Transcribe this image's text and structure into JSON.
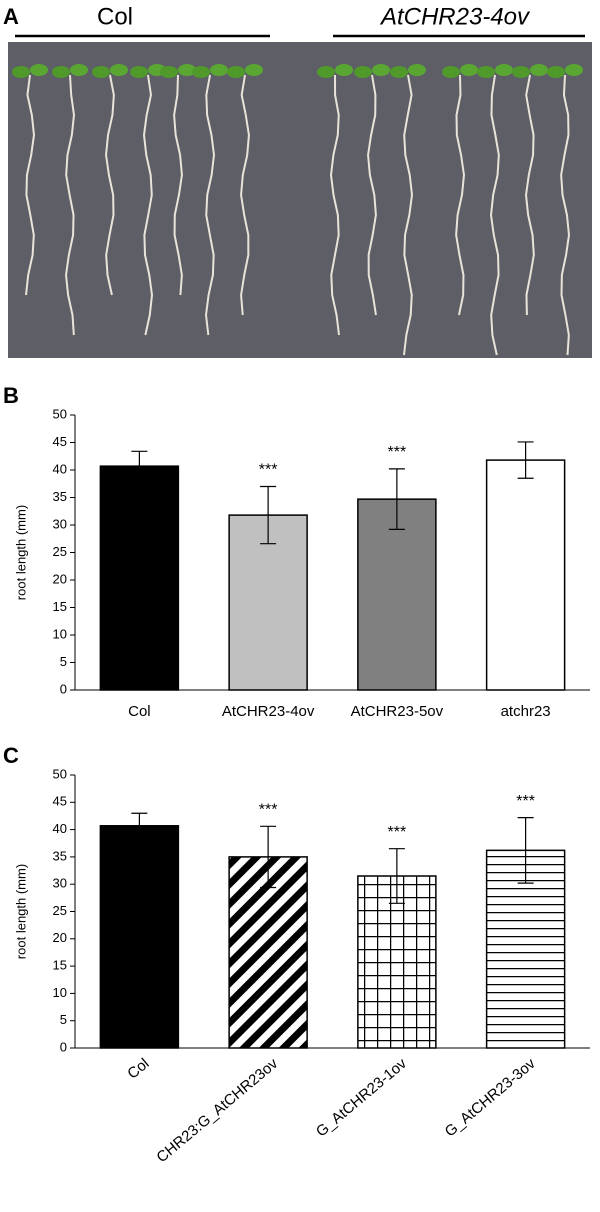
{
  "panel_a": {
    "panel_label": "A",
    "groups": [
      "Col",
      "AtCHR23-4ov"
    ]
  },
  "chart_data": [
    {
      "type": "bar",
      "panel_label": "B",
      "ylabel": "root length (mm)",
      "categories": [
        "Col",
        "AtCHR23-4ov",
        "AtCHR23-5ov",
        "atchr23"
      ],
      "values": [
        40.7,
        31.8,
        34.7,
        41.8
      ],
      "errors": [
        2.7,
        5.2,
        5.5,
        3.3
      ],
      "colors": [
        "#000000",
        "#c0c0c0",
        "#808080",
        "#ffffff"
      ],
      "annotations": [
        null,
        "***",
        "***",
        null
      ],
      "ylim": [
        0,
        50
      ],
      "yticks": [
        0,
        5,
        10,
        15,
        20,
        25,
        30,
        35,
        40,
        45,
        50
      ]
    },
    {
      "type": "bar",
      "panel_label": "C",
      "ylabel": "root length (mm)",
      "categories": [
        "Col",
        "CHR23:G_AtCHR23ov",
        "G_AtCHR23-1ov",
        "G_AtCHR23-3ov"
      ],
      "values": [
        40.7,
        35.0,
        31.5,
        36.2
      ],
      "errors": [
        2.3,
        5.6,
        5.0,
        6.0
      ],
      "colors": [
        "#000000",
        "#000000",
        "#000000",
        "#000000"
      ],
      "patterns": [
        "solid",
        "diagonal",
        "grid",
        "horizontal"
      ],
      "annotations": [
        null,
        "***",
        "***",
        "***"
      ],
      "ylim": [
        0,
        50
      ],
      "yticks": [
        0,
        5,
        10,
        15,
        20,
        25,
        30,
        35,
        40,
        45,
        50
      ],
      "rotate_labels": true
    }
  ]
}
